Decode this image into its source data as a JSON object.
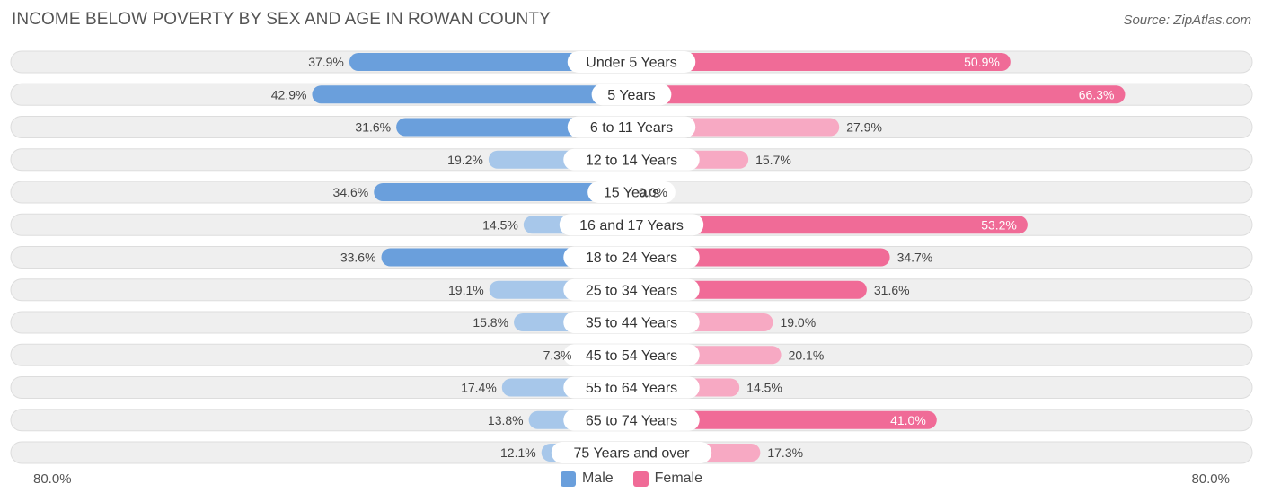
{
  "title": "INCOME BELOW POVERTY BY SEX AND AGE IN ROWAN COUNTY",
  "source": "Source: ZipAtlas.com",
  "axis": {
    "left_label": "80.0%",
    "right_label": "80.0%"
  },
  "legend": {
    "male_label": "Male",
    "female_label": "Female"
  },
  "colors": {
    "male_strong": "#6a9fdc",
    "male_light": "#a7c7ea",
    "female_strong": "#f06b97",
    "female_light": "#f7a9c3",
    "row_bg": "#efefef",
    "row_border": "#dddddd"
  },
  "chart_data": {
    "type": "bar",
    "orientation": "horizontal-diverging",
    "title": "INCOME BELOW POVERTY BY SEX AND AGE IN ROWAN COUNTY",
    "max_value": 80.0,
    "categories": [
      "Under 5 Years",
      "5 Years",
      "6 to 11 Years",
      "12 to 14 Years",
      "15 Years",
      "16 and 17 Years",
      "18 to 24 Years",
      "25 to 34 Years",
      "35 to 44 Years",
      "45 to 54 Years",
      "55 to 64 Years",
      "65 to 74 Years",
      "75 Years and over"
    ],
    "series": [
      {
        "name": "Male",
        "values": [
          37.9,
          42.9,
          31.6,
          19.2,
          34.6,
          14.5,
          33.6,
          19.1,
          15.8,
          7.3,
          17.4,
          13.8,
          12.1
        ],
        "labels": [
          "37.9%",
          "42.9%",
          "31.6%",
          "19.2%",
          "34.6%",
          "14.5%",
          "33.6%",
          "19.1%",
          "15.8%",
          "7.3%",
          "17.4%",
          "13.8%",
          "12.1%"
        ]
      },
      {
        "name": "Female",
        "values": [
          50.9,
          66.3,
          27.9,
          15.7,
          0.0,
          53.2,
          34.7,
          31.6,
          19.0,
          20.1,
          14.5,
          41.0,
          17.3
        ],
        "labels": [
          "50.9%",
          "66.3%",
          "27.9%",
          "15.7%",
          "0.0%",
          "53.2%",
          "34.7%",
          "31.6%",
          "19.0%",
          "20.1%",
          "14.5%",
          "41.0%",
          "17.3%"
        ]
      }
    ]
  }
}
